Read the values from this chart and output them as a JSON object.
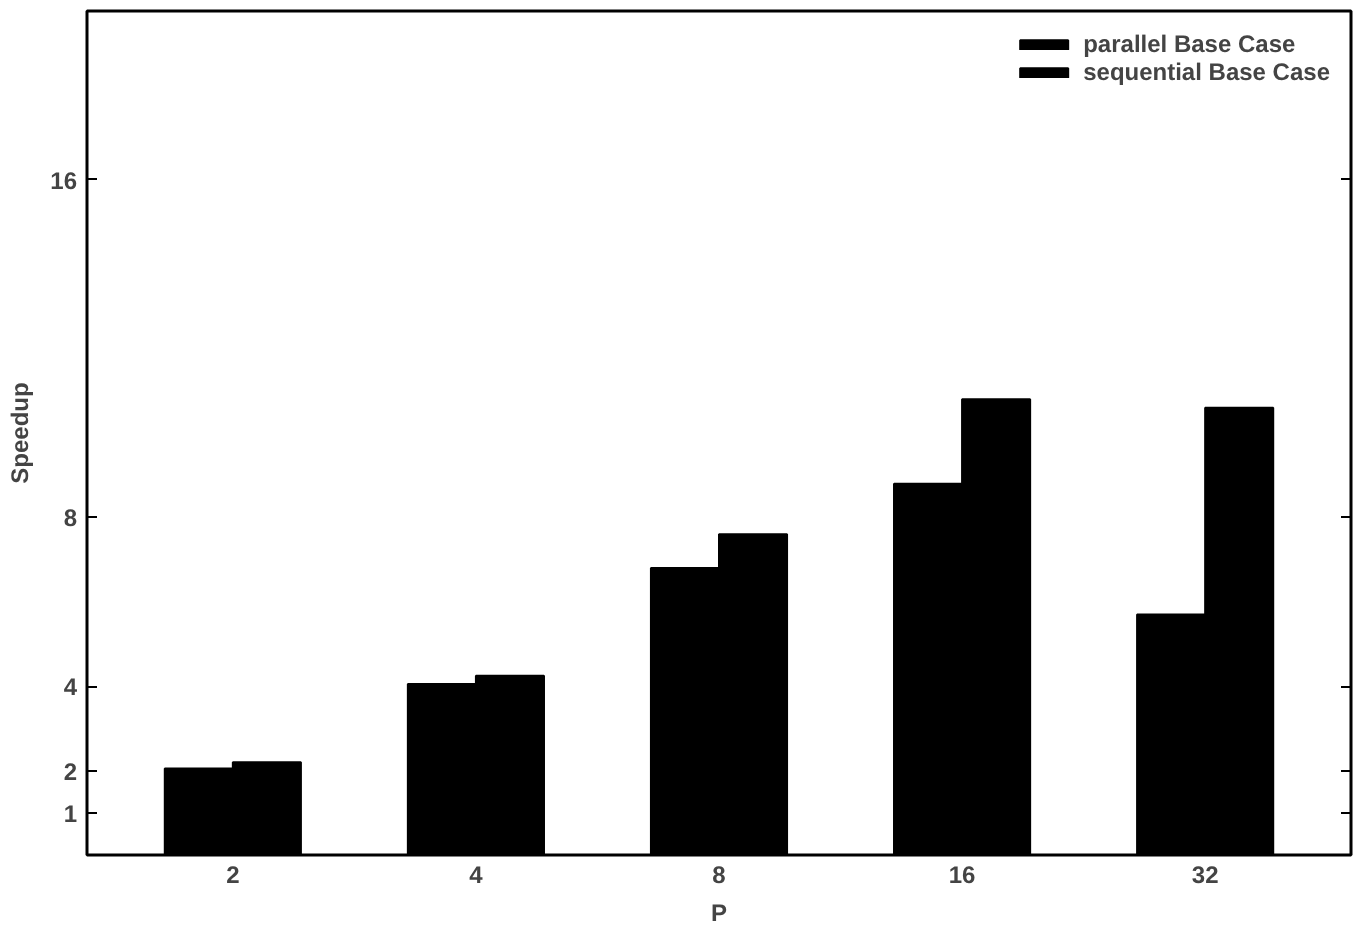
{
  "chart_data": {
    "type": "bar",
    "xlabel": "P",
    "ylabel": "Speedup",
    "categories": [
      "2",
      "4",
      "8",
      "16",
      "32"
    ],
    "series": [
      {
        "name": "parallel Base Case",
        "color": "#000000",
        "values": [
          2.05,
          4.05,
          6.8,
          8.8,
          5.7
        ]
      },
      {
        "name": "sequential Base Case",
        "color": "#000000",
        "values": [
          2.2,
          4.25,
          7.6,
          10.8,
          10.6
        ]
      }
    ],
    "ylim": [
      0,
      20
    ],
    "yticks": [
      1,
      2,
      4,
      8,
      16
    ],
    "grid": false,
    "legend": "top right"
  }
}
